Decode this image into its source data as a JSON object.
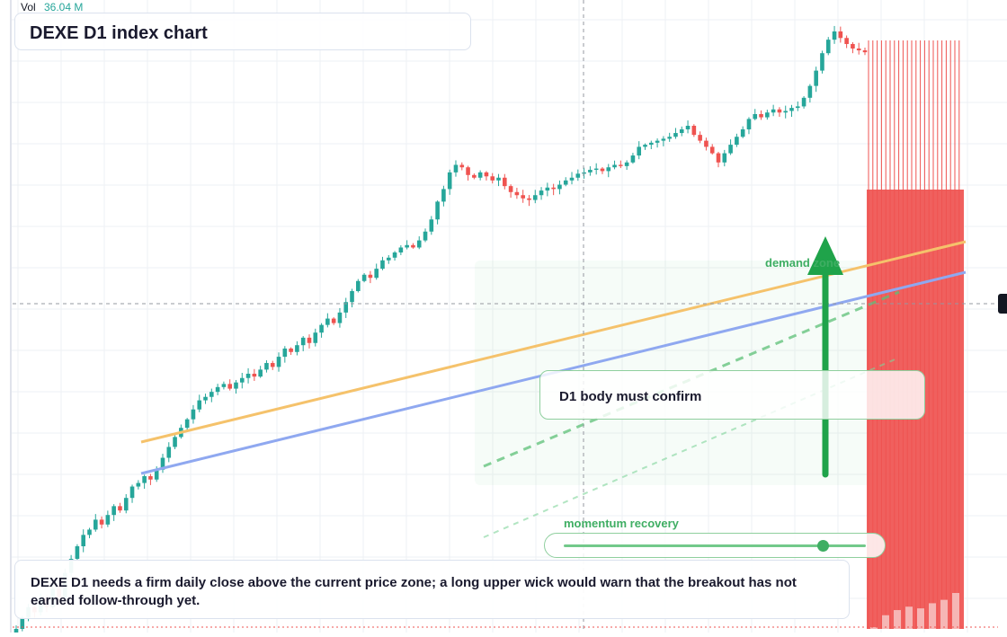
{
  "header": {
    "vol_label": "Vol",
    "vol_value": "36.04 M"
  },
  "title": "DEXE D1 index chart",
  "note": "DEXE D1 needs a firm daily close above the current price zone; a long upper wick would warn that the breakout has not earned follow-through yet.",
  "confirm_label": "D1 body must confirm",
  "zone_label": "demand zone",
  "slider_label": "momentum recovery",
  "slider_value": 0.86,
  "colors": {
    "up": "#26a69a",
    "down": "#ef5350",
    "orange_line": "#f5c26b",
    "blue_line": "#8fa8f0",
    "arrow": "#1fa34a"
  },
  "icons": [
    "arrow-up-icon",
    "crosshair-icon"
  ],
  "chart_data": {
    "type": "candlestick",
    "title": "DEXE D1 index chart",
    "xlabel": "",
    "ylabel": "",
    "grid": true,
    "closes": [
      1.0,
      1.1,
      1.2,
      1.15,
      1.3,
      1.2,
      1.4,
      1.3,
      1.6,
      1.8,
      2.0,
      2.2,
      2.3,
      2.5,
      2.4,
      2.6,
      2.8,
      2.7,
      3.0,
      3.3,
      3.4,
      3.6,
      3.5,
      3.8,
      4.2,
      4.6,
      5.0,
      5.4,
      5.8,
      6.3,
      6.8,
      7.0,
      7.3,
      7.6,
      7.8,
      7.5,
      7.9,
      8.2,
      8.5,
      8.3,
      8.8,
      9.3,
      9.0,
      9.8,
      10.5,
      10.2,
      10.8,
      11.5,
      11.0,
      12.0,
      12.8,
      13.5,
      13.0,
      14.2,
      15.5,
      17.0,
      18.5,
      19.5,
      19.0,
      20.5,
      22.0,
      22.5,
      23.5,
      24.5,
      25.0,
      24.5,
      26.0,
      28.0,
      31.0,
      36.0,
      40.0,
      46.0,
      49.0,
      48.0,
      45.0,
      44.0,
      46.0,
      44.5,
      43.0,
      44.0,
      41.0,
      39.0,
      38.0,
      37.0,
      36.5,
      38.0,
      39.5,
      40.5,
      40.0,
      41.5,
      43.0,
      44.0,
      45.5,
      46.0,
      47.0,
      47.5,
      46.5,
      48.0,
      49.0,
      48.5,
      50.0,
      53.0,
      57.0,
      58.0,
      59.0,
      60.0,
      61.0,
      62.0,
      64.0,
      66.0,
      68.0,
      63.0,
      60.0,
      57.0,
      54.0,
      50.0,
      54.0,
      58.0,
      62.0,
      66.0,
      72.0,
      75.0,
      73.0,
      76.0,
      78.0,
      76.0,
      77.0,
      79.0,
      80.0,
      86.0,
      95.0,
      108.0,
      125.0,
      140.0,
      150.0,
      142.0,
      135.0,
      130.0,
      128.0,
      126.0
    ],
    "volume": [
      1,
      8,
      11,
      13,
      12,
      15,
      17,
      21
    ]
  }
}
